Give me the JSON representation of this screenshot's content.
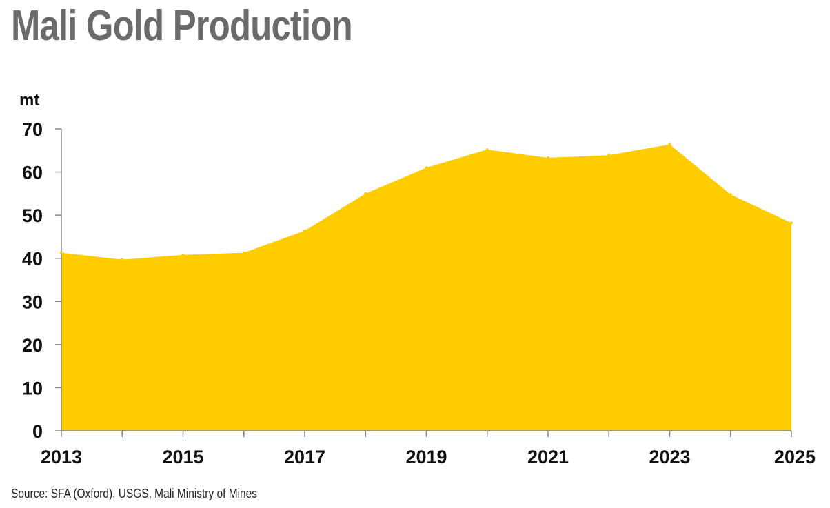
{
  "title": "Mali Gold Production",
  "source": "Source: SFA (Oxford), USGS, Mali Ministry of Mines",
  "colors": {
    "area": "#FFCC00",
    "axis": "#888888",
    "title": "#6b6b6b"
  },
  "chart_data": {
    "type": "area",
    "title": "Mali Gold Production",
    "ylabel": "mt",
    "xlabel": "",
    "x": [
      2013,
      2014,
      2015,
      2016,
      2017,
      2018,
      2019,
      2020,
      2021,
      2022,
      2023,
      2024,
      2025
    ],
    "values": [
      41.3,
      39.7,
      40.8,
      41.3,
      46.4,
      55.0,
      61.0,
      65.2,
      63.3,
      63.9,
      66.4,
      54.8,
      48.2
    ],
    "x_tick_labels": [
      "2013",
      "2015",
      "2017",
      "2019",
      "2021",
      "2023",
      "2025"
    ],
    "y_tick_labels": [
      "0",
      "10",
      "20",
      "30",
      "40",
      "50",
      "60",
      "70"
    ],
    "ylim": [
      0,
      70
    ],
    "xlim": [
      2013,
      2025
    ],
    "grid": false,
    "legend": "none"
  }
}
